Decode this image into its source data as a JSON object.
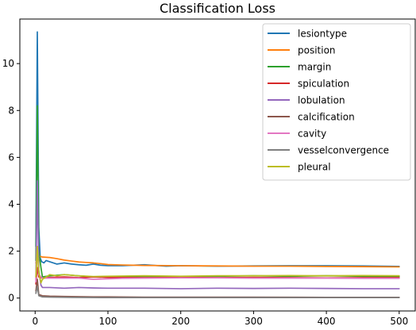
{
  "chart_data": {
    "type": "line",
    "title": "Classification Loss",
    "xlabel": "",
    "ylabel": "",
    "xlim": [
      -21,
      522
    ],
    "ylim": [
      -0.55,
      11.9
    ],
    "x_ticks": [
      0,
      100,
      200,
      300,
      400,
      500
    ],
    "y_ticks": [
      0,
      2,
      4,
      6,
      8,
      10
    ],
    "grid": false,
    "legend_position": "upper-right",
    "series": [
      {
        "name": "lesiontype",
        "color": "#1f77b4",
        "points": [
          [
            1,
            2.2
          ],
          [
            3,
            11.35
          ],
          [
            5,
            3.0
          ],
          [
            7,
            1.7
          ],
          [
            9,
            1.55
          ],
          [
            12,
            1.5
          ],
          [
            15,
            1.6
          ],
          [
            20,
            1.55
          ],
          [
            30,
            1.45
          ],
          [
            40,
            1.5
          ],
          [
            50,
            1.45
          ],
          [
            60,
            1.42
          ],
          [
            70,
            1.4
          ],
          [
            80,
            1.45
          ],
          [
            90,
            1.4
          ],
          [
            100,
            1.38
          ],
          [
            120,
            1.38
          ],
          [
            150,
            1.42
          ],
          [
            180,
            1.36
          ],
          [
            200,
            1.38
          ],
          [
            250,
            1.36
          ],
          [
            300,
            1.37
          ],
          [
            350,
            1.38
          ],
          [
            400,
            1.38
          ],
          [
            450,
            1.37
          ],
          [
            500,
            1.35
          ]
        ]
      },
      {
        "name": "position",
        "color": "#ff7f0e",
        "points": [
          [
            1,
            1.5
          ],
          [
            3,
            1.65
          ],
          [
            5,
            1.8
          ],
          [
            10,
            1.75
          ],
          [
            20,
            1.73
          ],
          [
            30,
            1.68
          ],
          [
            40,
            1.62
          ],
          [
            50,
            1.58
          ],
          [
            60,
            1.54
          ],
          [
            70,
            1.52
          ],
          [
            80,
            1.5
          ],
          [
            90,
            1.47
          ],
          [
            100,
            1.43
          ],
          [
            120,
            1.41
          ],
          [
            150,
            1.39
          ],
          [
            200,
            1.38
          ],
          [
            250,
            1.37
          ],
          [
            300,
            1.36
          ],
          [
            350,
            1.36
          ],
          [
            400,
            1.35
          ],
          [
            450,
            1.34
          ],
          [
            500,
            1.33
          ]
        ]
      },
      {
        "name": "margin",
        "color": "#2ca02c",
        "points": [
          [
            1,
            1.6
          ],
          [
            3,
            8.2
          ],
          [
            5,
            2.0
          ],
          [
            8,
            1.3
          ],
          [
            10,
            0.9
          ],
          [
            20,
            0.95
          ],
          [
            40,
            1.0
          ],
          [
            60,
            0.95
          ],
          [
            80,
            0.9
          ],
          [
            100,
            0.9
          ],
          [
            150,
            0.92
          ],
          [
            200,
            0.92
          ],
          [
            250,
            0.93
          ],
          [
            300,
            0.95
          ],
          [
            350,
            0.93
          ],
          [
            400,
            0.95
          ],
          [
            450,
            0.93
          ],
          [
            500,
            0.92
          ]
        ]
      },
      {
        "name": "spiculation",
        "color": "#d62728",
        "points": [
          [
            1,
            0.6
          ],
          [
            3,
            1.3
          ],
          [
            5,
            0.9
          ],
          [
            10,
            0.85
          ],
          [
            20,
            0.88
          ],
          [
            40,
            0.9
          ],
          [
            60,
            0.87
          ],
          [
            80,
            0.9
          ],
          [
            100,
            0.88
          ],
          [
            150,
            0.87
          ],
          [
            200,
            0.88
          ],
          [
            250,
            0.87
          ],
          [
            300,
            0.88
          ],
          [
            350,
            0.87
          ],
          [
            400,
            0.86
          ],
          [
            450,
            0.87
          ],
          [
            500,
            0.87
          ]
        ]
      },
      {
        "name": "lobulation",
        "color": "#9467bd",
        "points": [
          [
            1,
            0.8
          ],
          [
            3,
            5.0
          ],
          [
            5,
            1.2
          ],
          [
            8,
            0.55
          ],
          [
            10,
            0.45
          ],
          [
            20,
            0.45
          ],
          [
            40,
            0.42
          ],
          [
            60,
            0.45
          ],
          [
            80,
            0.43
          ],
          [
            100,
            0.42
          ],
          [
            150,
            0.42
          ],
          [
            200,
            0.4
          ],
          [
            250,
            0.42
          ],
          [
            300,
            0.41
          ],
          [
            350,
            0.42
          ],
          [
            400,
            0.41
          ],
          [
            450,
            0.4
          ],
          [
            500,
            0.4
          ]
        ]
      },
      {
        "name": "calcification",
        "color": "#8c564b",
        "points": [
          [
            1,
            0.3
          ],
          [
            3,
            0.8
          ],
          [
            5,
            0.15
          ],
          [
            10,
            0.1
          ],
          [
            20,
            0.08
          ],
          [
            40,
            0.07
          ],
          [
            60,
            0.06
          ],
          [
            80,
            0.05
          ],
          [
            100,
            0.05
          ],
          [
            150,
            0.04
          ],
          [
            200,
            0.04
          ],
          [
            300,
            0.04
          ],
          [
            400,
            0.03
          ],
          [
            500,
            0.03
          ]
        ]
      },
      {
        "name": "cavity",
        "color": "#e377c2",
        "points": [
          [
            1,
            0.7
          ],
          [
            3,
            2.2
          ],
          [
            5,
            1.0
          ],
          [
            10,
            0.85
          ],
          [
            20,
            0.85
          ],
          [
            40,
            0.85
          ],
          [
            60,
            0.85
          ],
          [
            80,
            0.8
          ],
          [
            100,
            0.82
          ],
          [
            120,
            0.84
          ],
          [
            150,
            0.85
          ],
          [
            200,
            0.86
          ],
          [
            250,
            0.86
          ],
          [
            300,
            0.85
          ],
          [
            350,
            0.85
          ],
          [
            400,
            0.85
          ],
          [
            450,
            0.84
          ],
          [
            500,
            0.84
          ]
        ]
      },
      {
        "name": "vesselconvergence",
        "color": "#7f7f7f",
        "points": [
          [
            1,
            0.2
          ],
          [
            3,
            0.5
          ],
          [
            5,
            0.1
          ],
          [
            10,
            0.05
          ],
          [
            20,
            0.04
          ],
          [
            50,
            0.03
          ],
          [
            100,
            0.02
          ],
          [
            200,
            0.02
          ],
          [
            300,
            0.02
          ],
          [
            400,
            0.02
          ],
          [
            500,
            0.02
          ]
        ]
      },
      {
        "name": "pleural",
        "color": "#bcbd22",
        "points": [
          [
            1,
            0.9
          ],
          [
            3,
            2.2
          ],
          [
            5,
            1.1
          ],
          [
            8,
            0.65
          ],
          [
            10,
            0.8
          ],
          [
            20,
            1.0
          ],
          [
            30,
            0.95
          ],
          [
            40,
            1.0
          ],
          [
            60,
            0.95
          ],
          [
            80,
            0.92
          ],
          [
            100,
            0.93
          ],
          [
            150,
            0.95
          ],
          [
            200,
            0.93
          ],
          [
            250,
            0.95
          ],
          [
            300,
            0.95
          ],
          [
            350,
            0.96
          ],
          [
            400,
            0.95
          ],
          [
            450,
            0.96
          ],
          [
            500,
            0.95
          ]
        ]
      }
    ]
  }
}
